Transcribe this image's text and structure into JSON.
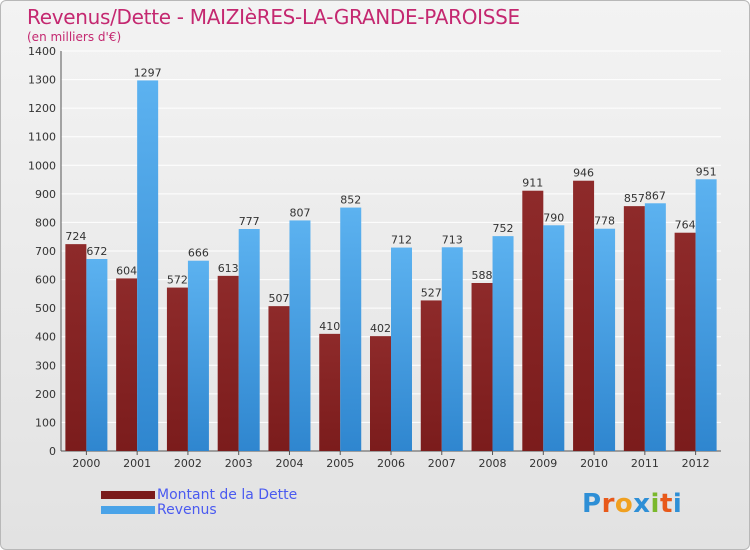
{
  "header": {
    "title": "Revenus/Dette - MAIZIèRES-LA-GRANDE-PAROISSE",
    "subtitle": "(en milliers d'€)"
  },
  "legend": {
    "debt_label": "Montant de la Dette",
    "revenue_label": "Revenus"
  },
  "logo": {
    "letters": [
      "P",
      "r",
      "o",
      "x",
      "i",
      "t",
      "i"
    ],
    "colors": [
      "#2e8fd6",
      "#e8591a",
      "#f0a020",
      "#2e8fd6",
      "#7ab82c",
      "#e8591a",
      "#2e8fd6"
    ]
  },
  "colors": {
    "debt": "#7b1c1c",
    "revenue": "#4aa3e8",
    "title": "#c42870",
    "legend_text": "#4a5af0",
    "grid": "#ffffff"
  },
  "chart_data": {
    "type": "bar",
    "title": "Revenus/Dette - MAIZIèRES-LA-GRANDE-PAROISSE",
    "ylabel": "(en milliers d'€)",
    "xlabel": "",
    "categories": [
      "2000",
      "2001",
      "2002",
      "2003",
      "2004",
      "2005",
      "2006",
      "2007",
      "2008",
      "2009",
      "2010",
      "2011",
      "2012"
    ],
    "series": [
      {
        "name": "Montant de la Dette",
        "values": [
          724,
          604,
          572,
          613,
          507,
          410,
          402,
          527,
          588,
          911,
          946,
          857,
          764
        ]
      },
      {
        "name": "Revenus",
        "values": [
          672,
          1297,
          666,
          777,
          807,
          852,
          712,
          713,
          752,
          790,
          778,
          867,
          951
        ]
      }
    ],
    "ylim": [
      0,
      1400
    ],
    "yticks": [
      0,
      100,
      200,
      300,
      400,
      500,
      600,
      700,
      800,
      900,
      1000,
      1100,
      1200,
      1300,
      1400
    ],
    "grid": true,
    "legend_position": "bottom-left"
  }
}
